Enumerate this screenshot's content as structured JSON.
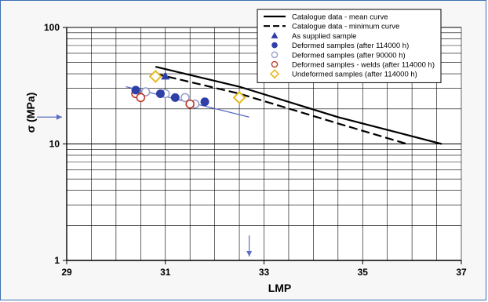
{
  "chart_data": {
    "type": "scatter",
    "xlabel": "LMP",
    "ylabel": "σ (MPa)",
    "xlim": [
      29,
      37
    ],
    "ylim": [
      1,
      100
    ],
    "yscale": "log",
    "x_ticks": [
      "29",
      "31",
      "33",
      "35",
      "37"
    ],
    "y_ticks": [
      "1",
      "10",
      "100"
    ],
    "grid": true,
    "legend_position": "top-right",
    "series": [
      {
        "name": "Catalogue data - mean curve",
        "kind": "line",
        "style": "solid",
        "color": "#000000",
        "points": [
          [
            30.8,
            46
          ],
          [
            32.5,
            31
          ],
          [
            34.5,
            17
          ],
          [
            36.6,
            10
          ]
        ]
      },
      {
        "name": "Catalogue data - minimum curve",
        "kind": "line",
        "style": "dashed",
        "color": "#000000",
        "points": [
          [
            30.8,
            40
          ],
          [
            32.5,
            27
          ],
          [
            34.5,
            15
          ],
          [
            35.9,
            10
          ]
        ]
      },
      {
        "name": "As supplied sample",
        "kind": "marker",
        "marker": "triangle",
        "color": "#2e3fa6",
        "points": [
          [
            31.0,
            38
          ]
        ]
      },
      {
        "name": "Deformed samples (after 114000 h)",
        "kind": "marker",
        "marker": "filled-circle",
        "color": "#2e3fa6",
        "points": [
          [
            30.4,
            29
          ],
          [
            30.9,
            27
          ],
          [
            31.2,
            25
          ],
          [
            31.8,
            23
          ]
        ]
      },
      {
        "name": "Deformed samples (after 90000 h)",
        "kind": "marker",
        "marker": "open-circle",
        "color": "#9aa0c8",
        "points": [
          [
            30.6,
            28
          ],
          [
            31.0,
            27
          ],
          [
            31.4,
            25
          ],
          [
            31.6,
            22
          ]
        ]
      },
      {
        "name": "Deformed samples - welds (after 114000 h)",
        "kind": "marker",
        "marker": "open-circle",
        "color": "#c0392b",
        "points": [
          [
            30.4,
            27
          ],
          [
            30.5,
            25
          ],
          [
            31.5,
            22
          ]
        ]
      },
      {
        "name": "Undeformed samples (after 114000 h)",
        "kind": "marker",
        "marker": "diamond",
        "color": "#e8b820",
        "points": [
          [
            30.8,
            38
          ],
          [
            32.5,
            25
          ]
        ]
      },
      {
        "name": "",
        "kind": "trend",
        "style": "solid",
        "color": "#5b6cc4",
        "points": [
          [
            30.2,
            31
          ],
          [
            32.7,
            17
          ]
        ]
      }
    ],
    "annotations": [
      {
        "kind": "arrow",
        "axis": "y",
        "value": 17,
        "color": "#5b6cc4"
      },
      {
        "kind": "arrow",
        "axis": "x",
        "value": 32.7,
        "color": "#5b6cc4"
      }
    ]
  }
}
